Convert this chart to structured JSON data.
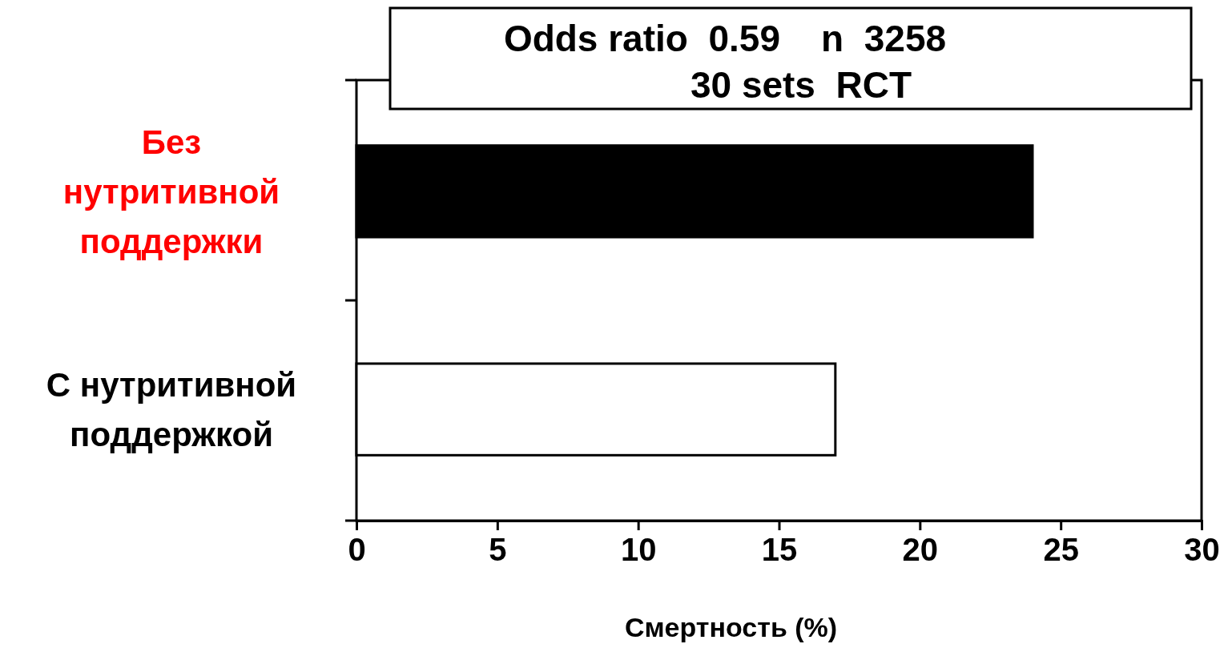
{
  "chart_data": {
    "type": "bar",
    "orientation": "horizontal",
    "categories": [
      "Без нутритивной поддержки",
      "С нутритивной поддержкой"
    ],
    "values": [
      24,
      17
    ],
    "colors": [
      "#000000",
      "#ffffff"
    ],
    "xlim": [
      0,
      30
    ],
    "xticks": [
      0,
      5,
      10,
      15,
      20,
      25,
      30
    ],
    "xlabel": "Смертность (%)",
    "annotations": [
      "Odds ratio  0.59    n  3258",
      "30 sets  RCT"
    ],
    "grid": false
  }
}
